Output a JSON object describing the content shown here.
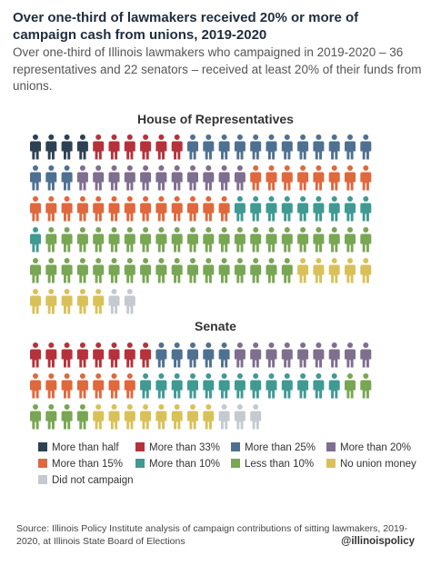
{
  "title": "Over one-third of lawmakers received 20% or more of campaign cash from unions, 2019-2020",
  "subtitle": "Over one-third of Illinois lawmakers who campaigned in 2019-2020 – 36 representatives and 22 senators – received at least 20% of their funds from unions.",
  "source": "Source:  Illinois Policy Institute analysis of campaign contributions of sitting lawmakers, 2019-2020, at Illinois State Board of Elections",
  "handle": "@illinoispolicy",
  "colors": {
    "more_than_half": "#2e4054",
    "more_than_33": "#b5323b",
    "more_than_25": "#4f7191",
    "more_than_20": "#7e6e8f",
    "more_than_15": "#e0683d",
    "more_than_10": "#3f9a93",
    "less_than_10": "#79a653",
    "no_union_money": "#d9c15a",
    "did_not_campaign": "#c5cad0"
  },
  "legend": [
    {
      "key": "more_than_half",
      "label": "More than half"
    },
    {
      "key": "more_than_33",
      "label": "More than 33%"
    },
    {
      "key": "more_than_25",
      "label": "More than 25%"
    },
    {
      "key": "more_than_20",
      "label": "More than 20%"
    },
    {
      "key": "more_than_15",
      "label": "More than 15%"
    },
    {
      "key": "more_than_10",
      "label": "More than 10%"
    },
    {
      "key": "less_than_10",
      "label": "Less than 10%"
    },
    {
      "key": "no_union_money",
      "label": "No union money"
    },
    {
      "key": "did_not_campaign",
      "label": "Did not campaign"
    }
  ],
  "chart_data": [
    {
      "type": "pictogram",
      "title": "House of Representatives",
      "unit": "lawmaker",
      "series": [
        {
          "key": "more_than_half",
          "name": "More than half",
          "count": 4
        },
        {
          "key": "more_than_33",
          "name": "More than 33%",
          "count": 6
        },
        {
          "key": "more_than_25",
          "name": "More than 25%",
          "count": 15
        },
        {
          "key": "more_than_20",
          "name": "More than 20%",
          "count": 11
        },
        {
          "key": "more_than_15",
          "name": "More than 15%",
          "count": 21
        },
        {
          "key": "more_than_10",
          "name": "More than 10%",
          "count": 10
        },
        {
          "key": "less_than_10",
          "name": "Less than 10%",
          "count": 38
        },
        {
          "key": "no_union_money",
          "name": "No union money",
          "count": 10
        },
        {
          "key": "did_not_campaign",
          "name": "Did not campaign",
          "count": 2
        }
      ]
    },
    {
      "type": "pictogram",
      "title": "Senate",
      "unit": "lawmaker",
      "series": [
        {
          "key": "more_than_half",
          "name": "More than half",
          "count": 0
        },
        {
          "key": "more_than_33",
          "name": "More than 33%",
          "count": 8
        },
        {
          "key": "more_than_25",
          "name": "More than 25%",
          "count": 5
        },
        {
          "key": "more_than_20",
          "name": "More than 20%",
          "count": 9
        },
        {
          "key": "more_than_15",
          "name": "More than 15%",
          "count": 7
        },
        {
          "key": "more_than_10",
          "name": "More than 10%",
          "count": 13
        },
        {
          "key": "less_than_10",
          "name": "Less than 10%",
          "count": 6
        },
        {
          "key": "no_union_money",
          "name": "No union money",
          "count": 8
        },
        {
          "key": "did_not_campaign",
          "name": "Did not campaign",
          "count": 3
        }
      ]
    }
  ]
}
